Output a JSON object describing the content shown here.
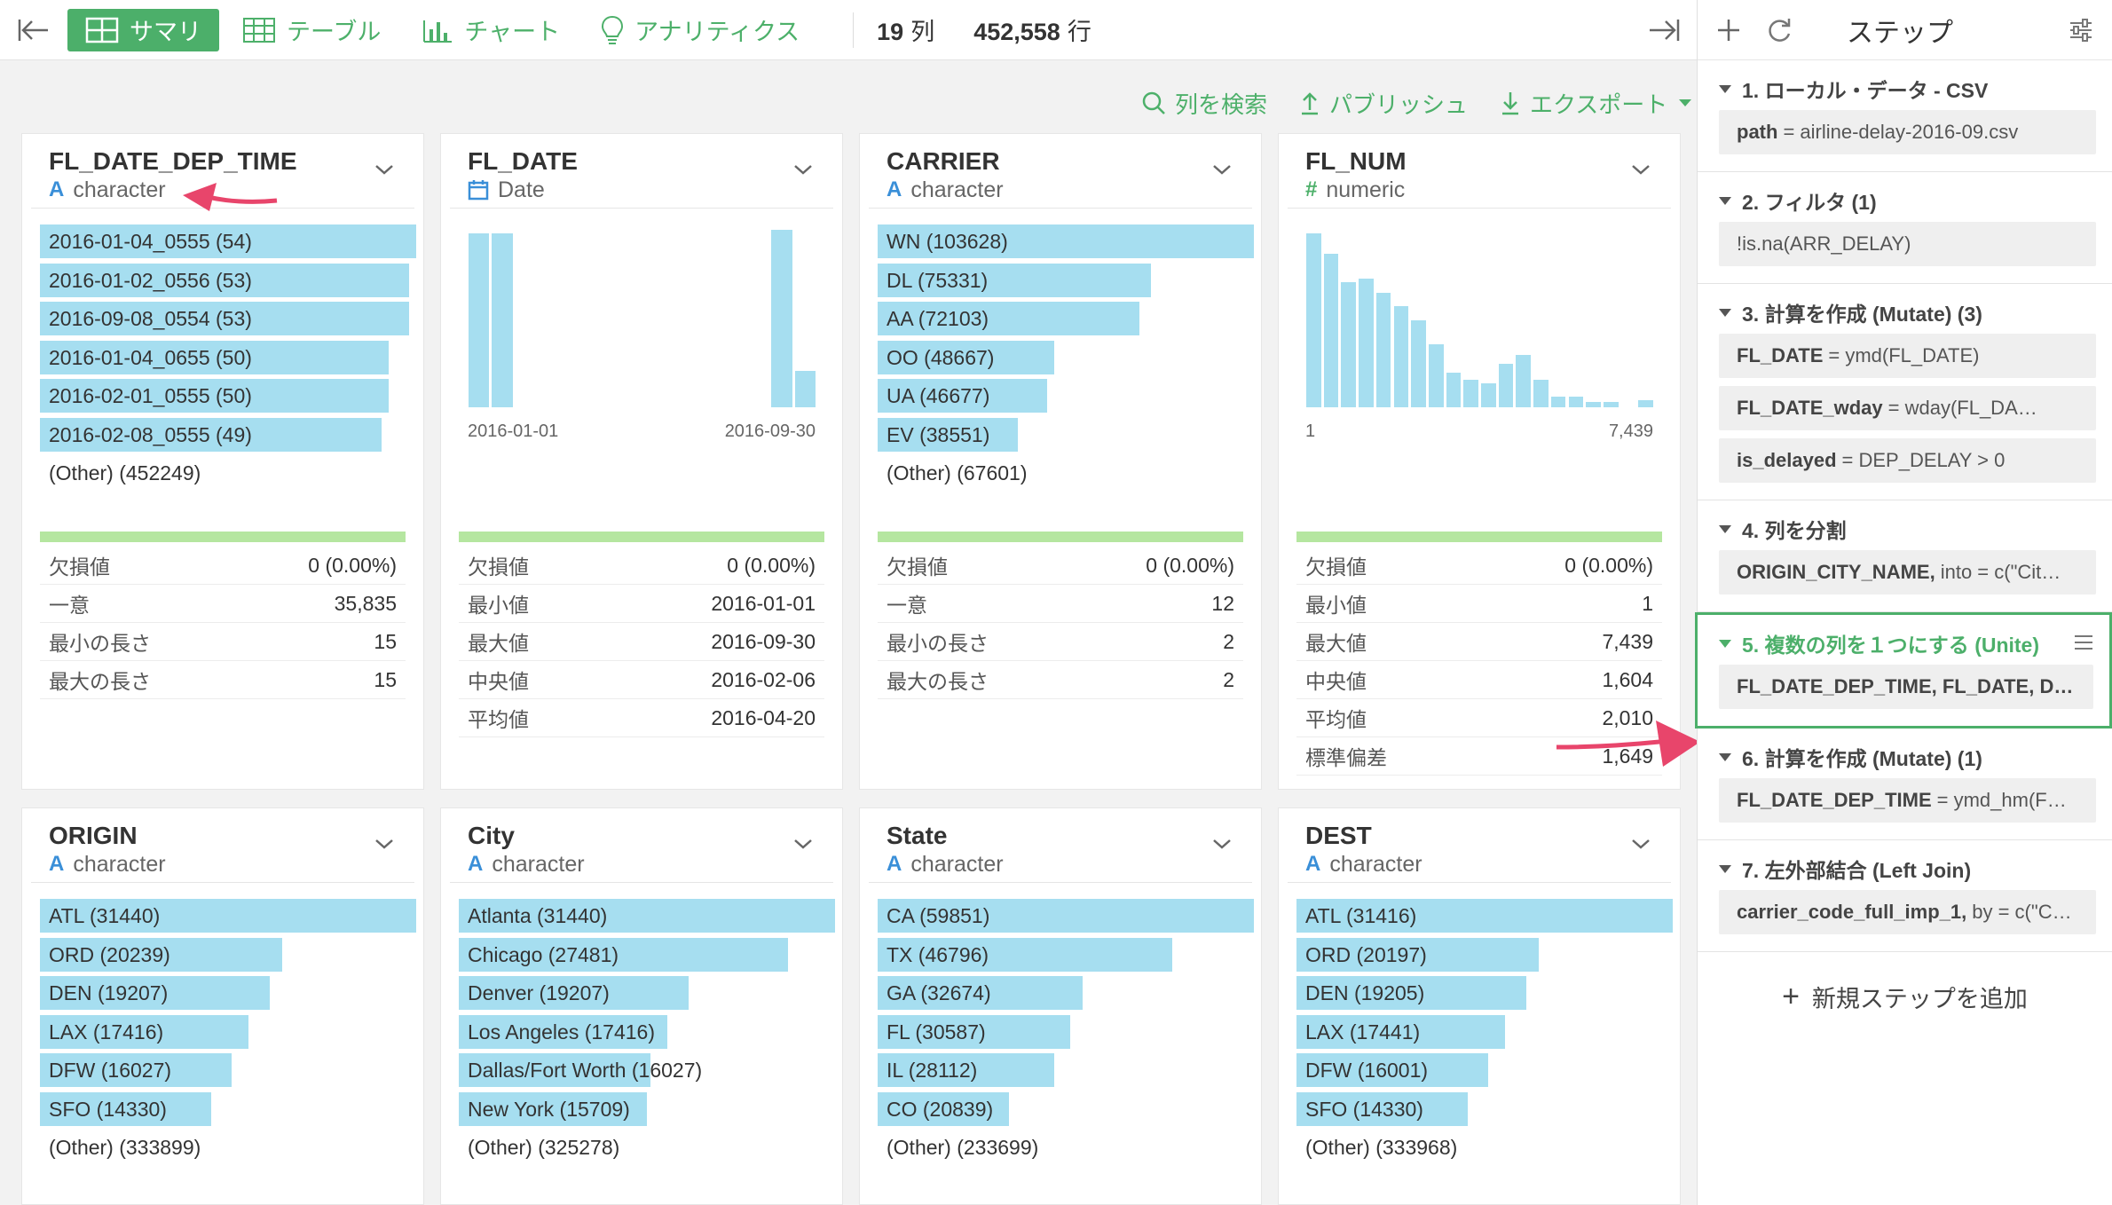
{
  "toolbar": {
    "tabs": [
      {
        "label": "サマリ",
        "icon": "grid-icon",
        "active": true
      },
      {
        "label": "テーブル",
        "icon": "table-icon",
        "active": false
      },
      {
        "label": "チャート",
        "icon": "bar-chart-icon",
        "active": false
      },
      {
        "label": "アナリティクス",
        "icon": "lightbulb-icon",
        "active": false
      }
    ],
    "columns_count": "19",
    "columns_unit": "列",
    "rows_count": "452,558",
    "rows_unit": "行"
  },
  "actions": {
    "search": "列を検索",
    "publish": "パブリッシュ",
    "export": "エクスポート"
  },
  "accent": "#4caf6a",
  "bar_color": "#a6def0",
  "columns": [
    {
      "name": "FL_DATE_DEP_TIME",
      "type_glyph": "A",
      "type": "character",
      "bars": [
        {
          "label": "2016-01-04_0555 (54)",
          "value": 54
        },
        {
          "label": "2016-01-02_0556 (53)",
          "value": 53
        },
        {
          "label": "2016-09-08_0554 (53)",
          "value": 53
        },
        {
          "label": "2016-01-04_0655 (50)",
          "value": 50
        },
        {
          "label": "2016-02-01_0555 (50)",
          "value": 50
        },
        {
          "label": "2016-02-08_0555 (49)",
          "value": 49
        }
      ],
      "other": "(Other) (452249)",
      "stats": [
        {
          "k": "欠損値",
          "v": "0 (0.00%)"
        },
        {
          "k": "一意",
          "v": "35,835"
        },
        {
          "k": "最小の長さ",
          "v": "15"
        },
        {
          "k": "最大の長さ",
          "v": "15"
        }
      ]
    },
    {
      "name": "FL_DATE",
      "type_glyph": "calendar-icon",
      "type": "Date",
      "hist_values": [
        1.0,
        1.0,
        0,
        0,
        0,
        0,
        0,
        0,
        0,
        0,
        0,
        0,
        0,
        1.02,
        0.21
      ],
      "axis_min": "2016-01-01",
      "axis_max": "2016-09-30",
      "stats": [
        {
          "k": "欠損値",
          "v": "0 (0.00%)"
        },
        {
          "k": "最小値",
          "v": "2016-01-01"
        },
        {
          "k": "最大値",
          "v": "2016-09-30"
        },
        {
          "k": "中央値",
          "v": "2016-02-06"
        },
        {
          "k": "平均値",
          "v": "2016-04-20"
        }
      ]
    },
    {
      "name": "CARRIER",
      "type_glyph": "A",
      "type": "character",
      "bars": [
        {
          "label": "WN (103628)",
          "value": 103628
        },
        {
          "label": "DL (75331)",
          "value": 75331
        },
        {
          "label": "AA (72103)",
          "value": 72103
        },
        {
          "label": "OO (48667)",
          "value": 48667
        },
        {
          "label": "UA (46677)",
          "value": 46677
        },
        {
          "label": "EV (38551)",
          "value": 38551
        }
      ],
      "other": "(Other) (67601)",
      "stats": [
        {
          "k": "欠損値",
          "v": "0 (0.00%)"
        },
        {
          "k": "一意",
          "v": "12"
        },
        {
          "k": "最小の長さ",
          "v": "2"
        },
        {
          "k": "最大の長さ",
          "v": "2"
        }
      ]
    },
    {
      "name": "FL_NUM",
      "type_glyph": "#",
      "type": "numeric",
      "hist_values": [
        1.0,
        0.88,
        0.72,
        0.74,
        0.66,
        0.58,
        0.5,
        0.36,
        0.2,
        0.16,
        0.14,
        0.25,
        0.3,
        0.16,
        0.06,
        0.06,
        0.03,
        0.03,
        0,
        0.04
      ],
      "axis_min": "1",
      "axis_max": "7,439",
      "stats": [
        {
          "k": "欠損値",
          "v": "0 (0.00%)"
        },
        {
          "k": "最小値",
          "v": "1"
        },
        {
          "k": "最大値",
          "v": "7,439"
        },
        {
          "k": "中央値",
          "v": "1,604"
        },
        {
          "k": "平均値",
          "v": "2,010"
        },
        {
          "k": "標準偏差",
          "v": "1,649"
        }
      ]
    },
    {
      "name": "ORIGIN",
      "type_glyph": "A",
      "type": "character",
      "bars": [
        {
          "label": "ATL (31440)",
          "value": 31440
        },
        {
          "label": "ORD (20239)",
          "value": 20239
        },
        {
          "label": "DEN (19207)",
          "value": 19207
        },
        {
          "label": "LAX (17416)",
          "value": 17416
        },
        {
          "label": "DFW (16027)",
          "value": 16027
        },
        {
          "label": "SFO (14330)",
          "value": 14330
        }
      ],
      "other": "(Other) (333899)"
    },
    {
      "name": "City",
      "type_glyph": "A",
      "type": "character",
      "bars": [
        {
          "label": "Atlanta (31440)",
          "value": 31440
        },
        {
          "label": "Chicago (27481)",
          "value": 27481
        },
        {
          "label": "Denver (19207)",
          "value": 19207
        },
        {
          "label": "Los Angeles (17416)",
          "value": 17416
        },
        {
          "label": "Dallas/Fort Worth (16027)",
          "value": 16027
        },
        {
          "label": "New York (15709)",
          "value": 15709
        }
      ],
      "other": "(Other) (325278)"
    },
    {
      "name": "State",
      "type_glyph": "A",
      "type": "character",
      "bars": [
        {
          "label": "CA (59851)",
          "value": 59851
        },
        {
          "label": "TX (46796)",
          "value": 46796
        },
        {
          "label": "GA (32674)",
          "value": 32674
        },
        {
          "label": "FL (30587)",
          "value": 30587
        },
        {
          "label": "IL (28112)",
          "value": 28112
        },
        {
          "label": "CO (20839)",
          "value": 20839
        }
      ],
      "other": "(Other) (233699)"
    },
    {
      "name": "DEST",
      "type_glyph": "A",
      "type": "character",
      "bars": [
        {
          "label": "ATL (31416)",
          "value": 31416
        },
        {
          "label": "ORD (20197)",
          "value": 20197
        },
        {
          "label": "DEN (19205)",
          "value": 19205
        },
        {
          "label": "LAX (17441)",
          "value": 17441
        },
        {
          "label": "DFW (16001)",
          "value": 16001
        },
        {
          "label": "SFO (14330)",
          "value": 14330
        }
      ],
      "other": "(Other) (333968)"
    }
  ],
  "steps_panel": {
    "title": "ステップ",
    "add_label": "新規ステップを追加",
    "steps": [
      {
        "title": "1. ローカル・データ - CSV",
        "cmds": [
          {
            "b": "path",
            "t": "= airline-delay-2016-09.csv"
          }
        ]
      },
      {
        "title": "2. フィルタ (1)",
        "cmds": [
          {
            "b": "",
            "t": "!is.na(ARR_DELAY)"
          }
        ]
      },
      {
        "title": "3. 計算を作成 (Mutate) (3)",
        "cmds": [
          {
            "b": "FL_DATE",
            "t": "= ymd(FL_DATE)"
          },
          {
            "b": "FL_DATE_wday",
            "t": "= wday(FL_DA…"
          },
          {
            "b": "is_delayed",
            "t": "= DEP_DELAY > 0"
          }
        ]
      },
      {
        "title": "4. 列を分割",
        "cmds": [
          {
            "b": "ORIGIN_CITY_NAME,",
            "t": "into = c(\"Cit…"
          }
        ]
      },
      {
        "title": "5. 複数の列を１つにする (Unite)",
        "selected": true,
        "cmds": [
          {
            "b": "FL_DATE_DEP_TIME, FL_DATE, D…",
            "t": ""
          }
        ]
      },
      {
        "title": "6. 計算を作成 (Mutate) (1)",
        "cmds": [
          {
            "b": "FL_DATE_DEP_TIME",
            "t": "= ymd_hm(F…"
          }
        ]
      },
      {
        "title": "7. 左外部結合 (Left Join)",
        "cmds": [
          {
            "b": "carrier_code_full_imp_1,",
            "t": "by = c(\"C…"
          }
        ]
      }
    ]
  }
}
